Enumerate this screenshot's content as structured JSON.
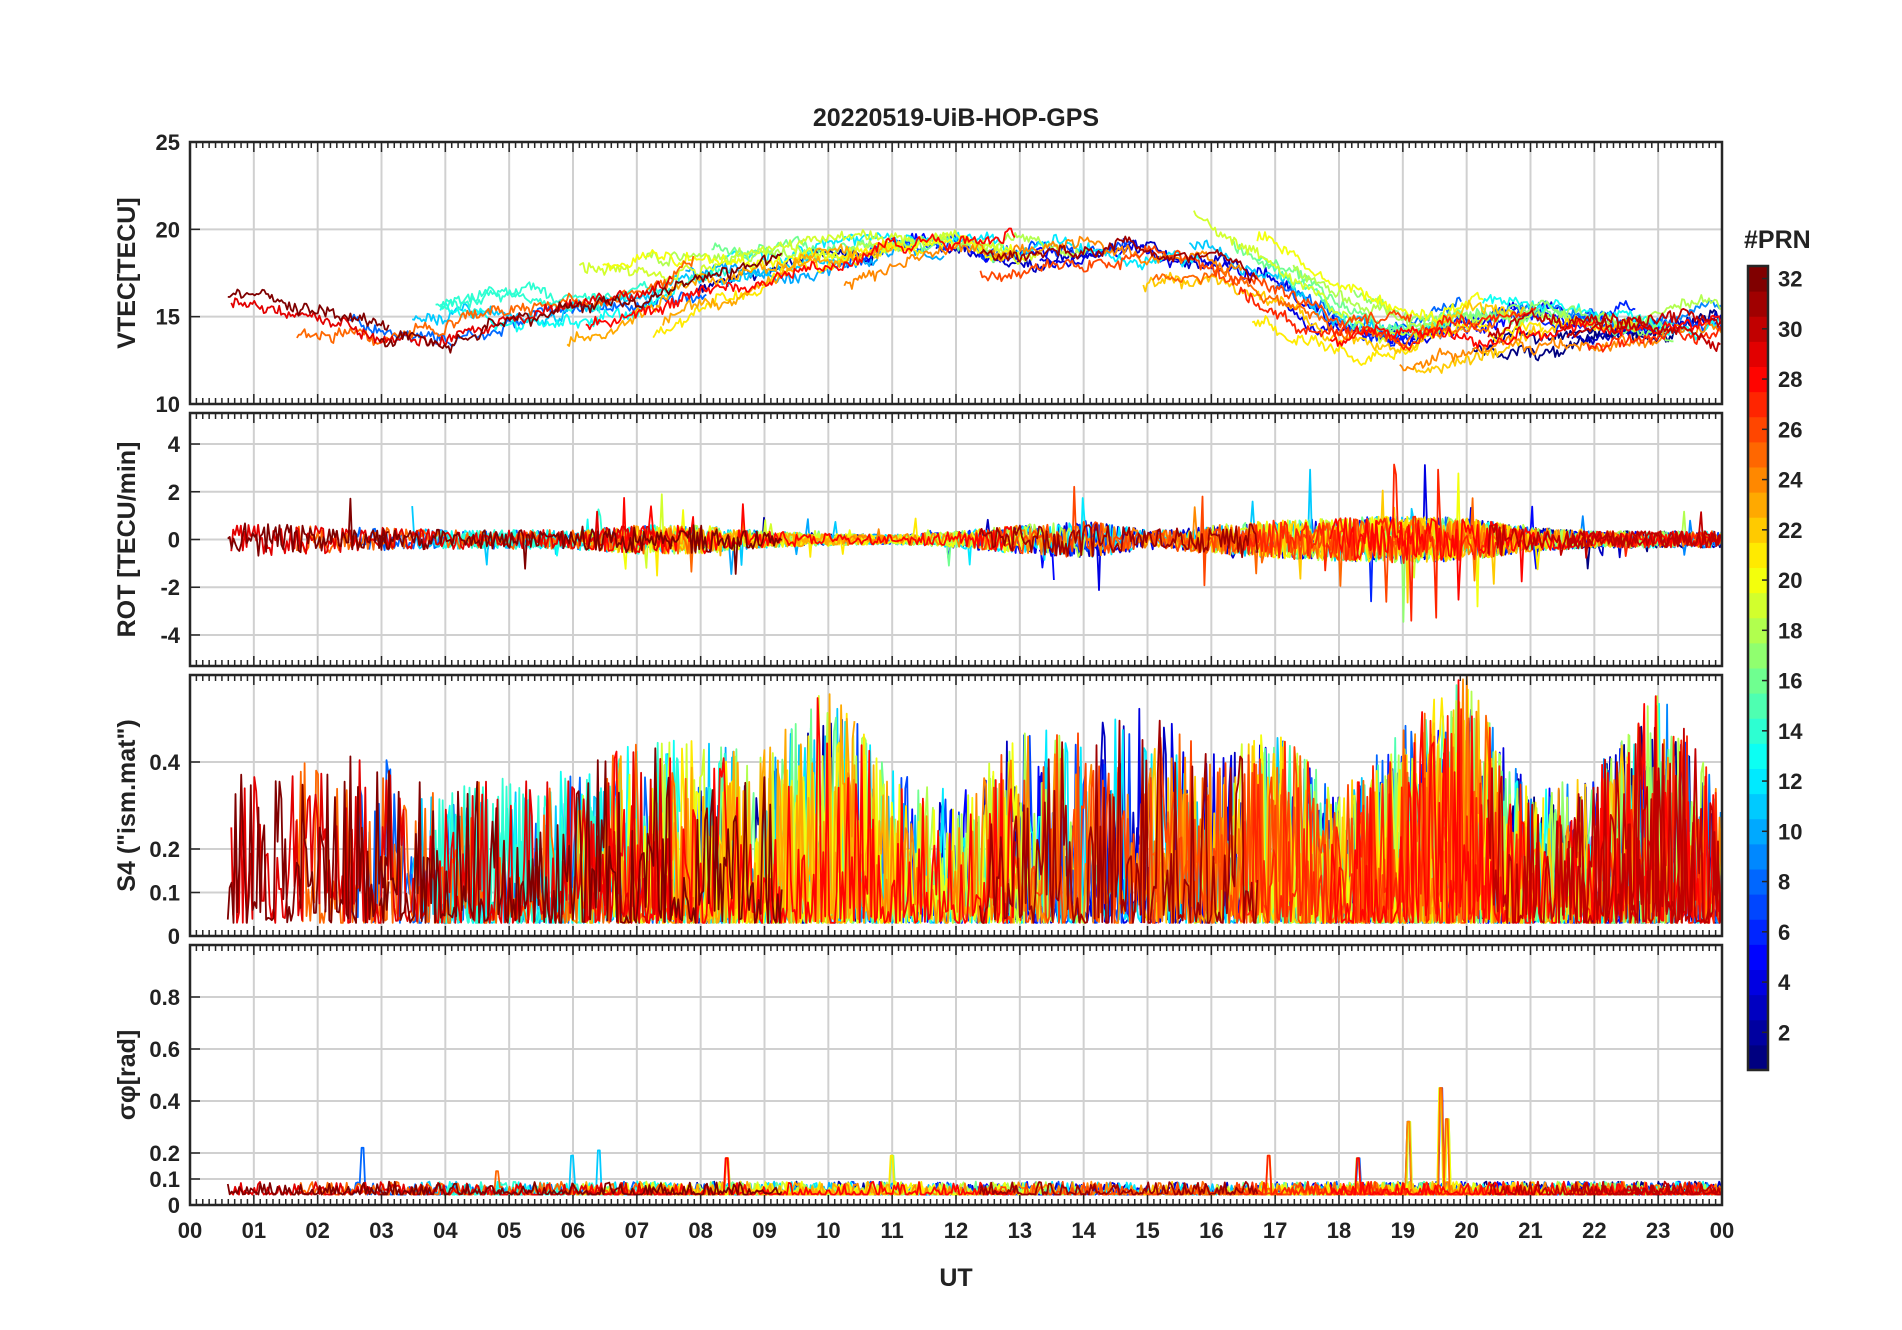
{
  "chart_data": {
    "title": "20220519-UiB-HOP-GPS",
    "xlabel": "UT",
    "type": "line",
    "x_range_hours": [
      0,
      24
    ],
    "x_tick_labels": [
      "00",
      "01",
      "02",
      "03",
      "04",
      "05",
      "06",
      "07",
      "08",
      "09",
      "10",
      "11",
      "12",
      "13",
      "14",
      "15",
      "16",
      "17",
      "18",
      "19",
      "20",
      "21",
      "22",
      "23",
      "00"
    ],
    "grid": true,
    "colorbar": {
      "label": "#PRN",
      "range": [
        1,
        32
      ],
      "colormap": "jet",
      "tick_labels": [
        "2",
        "4",
        "6",
        "8",
        "10",
        "12",
        "14",
        "16",
        "18",
        "20",
        "22",
        "24",
        "26",
        "28",
        "30",
        "32"
      ],
      "placement": "right"
    },
    "panels": [
      {
        "key": "vtec",
        "ylabel": "VTEC[TECU]",
        "ylim": [
          10,
          25
        ],
        "yticks": [
          10,
          15,
          20,
          25
        ],
        "ytick_labels": [
          "10",
          "15",
          "20",
          "25"
        ],
        "profile": [
          [
            0,
            16.5
          ],
          [
            1,
            16.5
          ],
          [
            2,
            15.2
          ],
          [
            3,
            14.2
          ],
          [
            4,
            14.3
          ],
          [
            5,
            15.0
          ],
          [
            6,
            15.5
          ],
          [
            7,
            16.0
          ],
          [
            8,
            17.2
          ],
          [
            9,
            17.5
          ],
          [
            10,
            18.3
          ],
          [
            11,
            19.0
          ],
          [
            12,
            19.4
          ],
          [
            13,
            18.8
          ],
          [
            14,
            18.8
          ],
          [
            15,
            19.0
          ],
          [
            16,
            18.5
          ],
          [
            17,
            16.5
          ],
          [
            18,
            14.4
          ],
          [
            19,
            13.9
          ],
          [
            20,
            14.6
          ],
          [
            21,
            14.8
          ],
          [
            22,
            14.6
          ],
          [
            23,
            14.4
          ],
          [
            24,
            14.6
          ]
        ],
        "spread": 2.6,
        "noise": 0.25
      },
      {
        "key": "rot",
        "ylabel": "ROT [TECU/min]",
        "ylim": [
          -5.3,
          5.3
        ],
        "yticks": [
          -4,
          -2,
          0,
          2,
          4
        ],
        "ytick_labels": [
          "-4",
          "-2",
          "0",
          "2",
          "4"
        ],
        "activity": [
          [
            0,
            0.6
          ],
          [
            1,
            0.7
          ],
          [
            2,
            0.6
          ],
          [
            3,
            0.5
          ],
          [
            4,
            0.4
          ],
          [
            5,
            0.4
          ],
          [
            6,
            0.4
          ],
          [
            7,
            0.6
          ],
          [
            8,
            0.6
          ],
          [
            9,
            0.35
          ],
          [
            10,
            0.25
          ],
          [
            11,
            0.2
          ],
          [
            12,
            0.35
          ],
          [
            13,
            0.6
          ],
          [
            14,
            0.8
          ],
          [
            15,
            0.4
          ],
          [
            16,
            0.6
          ],
          [
            17,
            0.8
          ],
          [
            18,
            0.9
          ],
          [
            19,
            1.0
          ],
          [
            20,
            0.9
          ],
          [
            21,
            0.5
          ],
          [
            22,
            0.35
          ],
          [
            23,
            0.35
          ],
          [
            24,
            0.35
          ]
        ],
        "peak": 4.6
      },
      {
        "key": "s4",
        "ylabel": "S4 (\"ism.mat\")",
        "ylim": [
          0,
          0.6
        ],
        "yticks": [
          0,
          0.1,
          0.2,
          0.4
        ],
        "ytick_labels": [
          "0",
          "0.1",
          "0.2",
          "0.4"
        ],
        "activity": [
          [
            0,
            0.35
          ],
          [
            1,
            0.35
          ],
          [
            2,
            0.42
          ],
          [
            3,
            0.4
          ],
          [
            4,
            0.3
          ],
          [
            5,
            0.35
          ],
          [
            6,
            0.35
          ],
          [
            7,
            0.42
          ],
          [
            8,
            0.42
          ],
          [
            9,
            0.4
          ],
          [
            10,
            0.55
          ],
          [
            11,
            0.35
          ],
          [
            12,
            0.3
          ],
          [
            13,
            0.45
          ],
          [
            14,
            0.45
          ],
          [
            15,
            0.5
          ],
          [
            16,
            0.4
          ],
          [
            17,
            0.45
          ],
          [
            18,
            0.3
          ],
          [
            19,
            0.45
          ],
          [
            20,
            0.58
          ],
          [
            21,
            0.3
          ],
          [
            22,
            0.35
          ],
          [
            23,
            0.55
          ],
          [
            24,
            0.3
          ]
        ],
        "baseline": 0.03
      },
      {
        "key": "sigma_phi",
        "ylabel": "σφ[rad]",
        "ylim": [
          0,
          1
        ],
        "yticks": [
          0,
          0.1,
          0.2,
          0.4,
          0.6,
          0.8
        ],
        "ytick_labels": [
          "0",
          "0.1",
          "0.2",
          "0.4",
          "0.6",
          "0.8"
        ],
        "baseline": 0.04,
        "spikes": [
          {
            "t": 2.7,
            "v": 0.22
          },
          {
            "t": 6.0,
            "v": 0.19
          },
          {
            "t": 6.4,
            "v": 0.21
          },
          {
            "t": 8.4,
            "v": 0.18
          },
          {
            "t": 11.0,
            "v": 0.19
          },
          {
            "t": 16.9,
            "v": 0.19
          },
          {
            "t": 18.3,
            "v": 0.18
          },
          {
            "t": 19.1,
            "v": 0.32
          },
          {
            "t": 19.6,
            "v": 0.45
          },
          {
            "t": 19.7,
            "v": 0.33
          },
          {
            "t": 4.8,
            "v": 0.13
          }
        ]
      }
    ]
  }
}
